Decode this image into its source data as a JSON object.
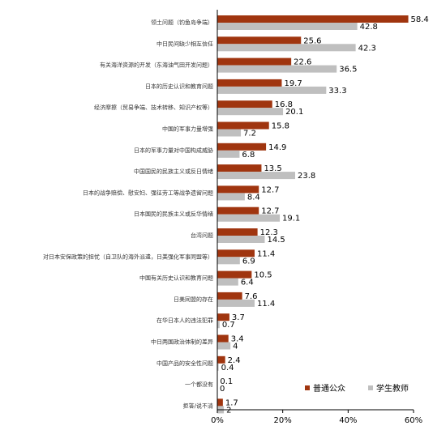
{
  "chart_data": {
    "type": "bar",
    "orientation": "horizontal",
    "categories": [
      "领土问题（钓鱼岛争端）",
      "中日民间缺少相互信任",
      "有关海洋资源的开发（东海油气田开发问题）",
      "日本的历史认识和教育问题",
      "经济摩擦（贸易争端、技术转移、知识产权等）",
      "中国的军事力量增强",
      "日本的军事力量对中国构成威胁",
      "中国国民的民族主义或反日情绪",
      "日本的战争赔偿、慰安妇、强征劳工等战争遗留问题",
      "日本国民的民族主义或反华情绪",
      "台湾问题",
      "对日本安保政策的担忧（自卫队的海外派遣，日美强化军事同盟等）",
      "中国有关历史认识和教育问题",
      "日美同盟的存在",
      "在华日本人的违法犯罪",
      "中日两国政治体制的差异",
      "中国产品的安全性问题",
      "一个都没有",
      "拒答/说不清"
    ],
    "series": [
      {
        "name": "普通公众",
        "color": "#a0350f",
        "values": [
          58.4,
          25.6,
          22.6,
          19.7,
          16.8,
          15.8,
          14.9,
          13.5,
          12.7,
          12.7,
          12.3,
          11.4,
          10.5,
          7.6,
          3.7,
          3.4,
          2.4,
          0.1,
          1.7
        ]
      },
      {
        "name": "学生教师",
        "color": "#bfbfbf",
        "values": [
          42.8,
          42.3,
          36.5,
          33.3,
          20.1,
          7.2,
          6.8,
          23.8,
          8.4,
          19.1,
          14.5,
          6.9,
          6.4,
          11.4,
          0.7,
          4,
          0.4,
          0,
          2
        ]
      }
    ],
    "value_labels": [
      [
        "58.4",
        "25.6",
        "22.6",
        "19.7",
        "16.8",
        "15.8",
        "14.9",
        "13.5",
        "12.7",
        "12.7",
        "12.3",
        "11.4",
        "10.5",
        "7.6",
        "3.7",
        "3.4",
        "2.4",
        "0.1",
        "1.7"
      ],
      [
        "42.8",
        "42.3",
        "36.5",
        "33.3",
        "20.1",
        "7.2",
        "6.8",
        "23.8",
        "8.4",
        "19.1",
        "14.5",
        "6.9",
        "6.4",
        "11.4",
        "0.7",
        "4",
        "0.4",
        "0",
        "2"
      ]
    ],
    "xlim": [
      0,
      60
    ],
    "xticks": [
      0,
      20,
      40,
      60
    ],
    "xtick_labels": [
      "0%",
      "20%",
      "40%",
      "60%"
    ],
    "grid": false,
    "legend_position": "bottom-right",
    "title": "",
    "xlabel": "",
    "ylabel": ""
  }
}
